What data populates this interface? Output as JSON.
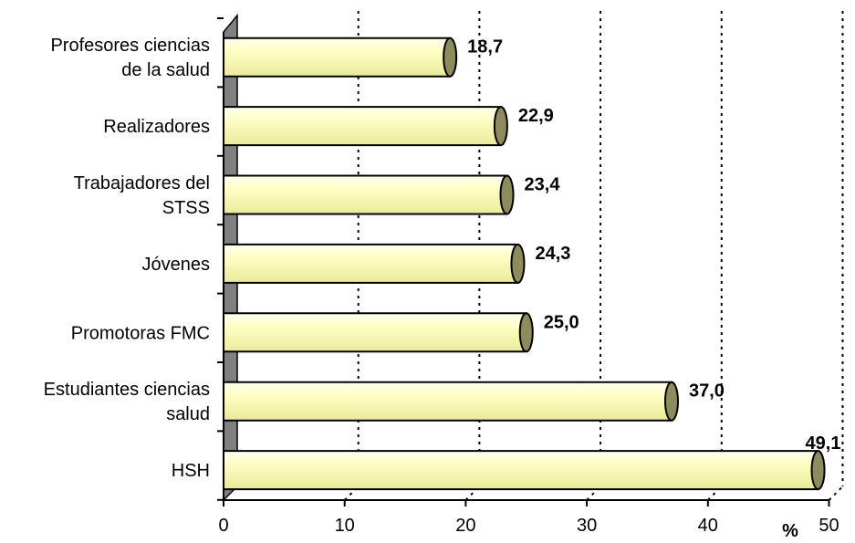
{
  "chart_data": {
    "type": "bar",
    "orientation": "horizontal",
    "style": "3d-cylinder",
    "categories": [
      [
        "Profesores ciencias",
        "de la salud"
      ],
      [
        "Realizadores"
      ],
      [
        "Trabajadores del",
        "STSS"
      ],
      [
        "Jóvenes"
      ],
      [
        "Promotoras FMC"
      ],
      [
        "Estudiantes ciencias",
        "salud"
      ],
      [
        "HSH"
      ]
    ],
    "values": [
      18.7,
      22.9,
      23.4,
      24.3,
      25.0,
      37.0,
      49.1
    ],
    "value_labels": [
      "18,7",
      "22,9",
      "23,4",
      "24,3",
      "25,0",
      "37,0",
      "49,1"
    ],
    "xlim": [
      0,
      50
    ],
    "x_ticks": [
      "0",
      "10",
      "20",
      "30",
      "40",
      "50"
    ],
    "x_unit_label": "%",
    "grid": "vertical dotted",
    "colors": {
      "bar": "#fefeb8",
      "bar_edge": "#000000",
      "cap": "#8c8c5c",
      "wall": "#808080"
    }
  }
}
